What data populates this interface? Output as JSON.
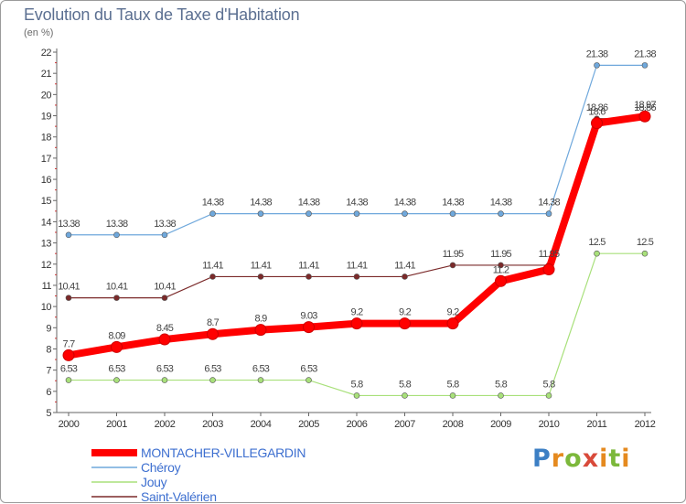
{
  "header": {
    "title": "Evolution du Taux de Taxe d'Habitation",
    "subtitle": "(en %)"
  },
  "logo": {
    "text": "Proxiti",
    "colors": [
      "#3c7fc4",
      "#e58a1f",
      "#7cb83b",
      "#d94a3a"
    ]
  },
  "chart_data": {
    "type": "line",
    "title": "Evolution du Taux de Taxe d'Habitation",
    "ylabel": "(en %)",
    "xlabel": "",
    "x": [
      "2000",
      "2001",
      "2002",
      "2003",
      "2004",
      "2005",
      "2006",
      "2007",
      "2008",
      "2009",
      "2010",
      "2011",
      "2012"
    ],
    "ylim": [
      5,
      22
    ],
    "yticks": [
      5,
      6,
      7,
      8,
      9,
      10,
      11,
      12,
      13,
      14,
      15,
      16,
      17,
      18,
      19,
      20,
      21,
      22
    ],
    "grid": false,
    "legend_position": "bottom-left",
    "series": [
      {
        "name": "MONTACHER-VILLEGARDIN",
        "color": "#ff0000",
        "emphasis": true,
        "values": [
          7.7,
          8.09,
          8.45,
          8.7,
          8.9,
          9.03,
          9.2,
          9.2,
          9.2,
          11.2,
          11.75,
          18.65,
          18.97
        ],
        "labels": [
          "7.7",
          "8.09",
          "8.45",
          "8.7",
          "8.9",
          "9.03",
          "9.2",
          "9.2",
          "9.2",
          "11.2",
          "",
          "18.6",
          "18.97"
        ]
      },
      {
        "name": "Chéroy",
        "color": "#6fa8dc",
        "emphasis": false,
        "values": [
          13.38,
          13.38,
          13.38,
          14.38,
          14.38,
          14.38,
          14.38,
          14.38,
          14.38,
          14.38,
          14.38,
          21.38,
          21.38
        ],
        "labels": [
          "13.38",
          "13.38",
          "13.38",
          "14.38",
          "14.38",
          "14.38",
          "14.38",
          "14.38",
          "14.38",
          "14.38",
          "14.38",
          "21.38",
          "21.38"
        ]
      },
      {
        "name": "Jouy",
        "color": "#a8e07a",
        "emphasis": false,
        "values": [
          6.53,
          6.53,
          6.53,
          6.53,
          6.53,
          6.53,
          5.8,
          5.8,
          5.8,
          5.8,
          5.8,
          12.5,
          12.5
        ],
        "labels": [
          "6.53",
          "6.53",
          "6.53",
          "6.53",
          "6.53",
          "6.53",
          "5.8",
          "5.8",
          "5.8",
          "5.8",
          "5.8",
          "12.5",
          "12.5"
        ]
      },
      {
        "name": "Saint-Valérien",
        "color": "#7b2a2a",
        "emphasis": false,
        "values": [
          10.41,
          10.41,
          10.41,
          11.41,
          11.41,
          11.41,
          11.41,
          11.41,
          11.95,
          11.95,
          11.95,
          18.86,
          18.86
        ],
        "labels": [
          "10.41",
          "10.41",
          "10.41",
          "11.41",
          "11.41",
          "11.41",
          "11.41",
          "11.41",
          "11.95",
          "11.95",
          "11.95",
          "18.86",
          "18.86"
        ]
      }
    ]
  }
}
